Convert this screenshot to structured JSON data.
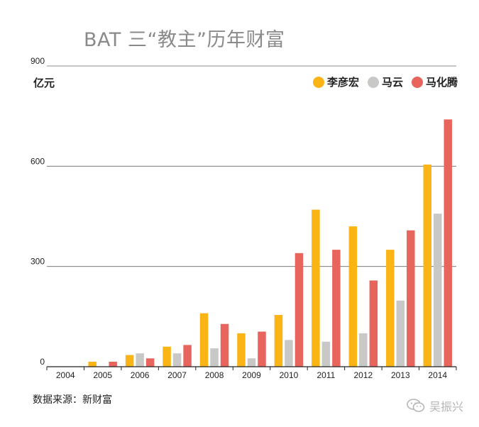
{
  "chart_data": {
    "type": "bar",
    "title": "BAT 三“教主”历年财富",
    "ylabel": "亿元",
    "xlabel": "",
    "ylim": [
      0,
      900
    ],
    "yticks": [
      0,
      300,
      600,
      900
    ],
    "categories": [
      "2004",
      "2005",
      "2006",
      "2007",
      "2008",
      "2009",
      "2010",
      "2011",
      "2012",
      "2013",
      "2014"
    ],
    "series": [
      {
        "name": "李彦宏",
        "color": "#fbb416",
        "values": [
          0,
          15,
          35,
          60,
          160,
          100,
          155,
          470,
          420,
          350,
          605
        ]
      },
      {
        "name": "马云",
        "color": "#c8c8c7",
        "values": [
          0,
          0,
          40,
          40,
          55,
          25,
          80,
          75,
          100,
          198,
          458
        ]
      },
      {
        "name": "马化腾",
        "color": "#e8655e",
        "values": [
          0,
          15,
          25,
          65,
          128,
          105,
          340,
          350,
          258,
          408,
          740
        ]
      }
    ],
    "legend_position": "top-right",
    "grid": true
  },
  "footer": {
    "source": "数据来源：新财富",
    "watermark": "吴振兴",
    "watermark_icon": "wechat-icon"
  }
}
